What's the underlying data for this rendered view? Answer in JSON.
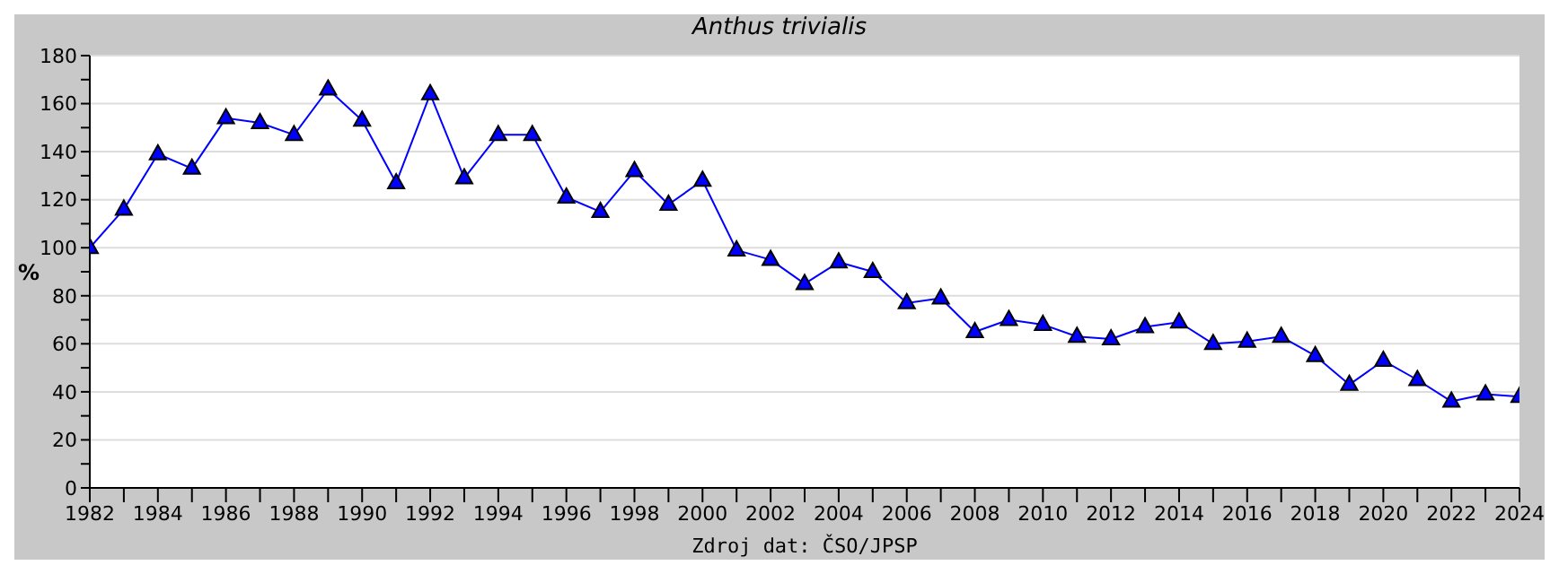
{
  "chart_data": {
    "type": "line",
    "title": "Anthus trivialis",
    "xlabel": "Zdroj dat: ČSO/JPSP",
    "ylabel": "%",
    "x": [
      1982,
      1983,
      1984,
      1985,
      1986,
      1987,
      1988,
      1989,
      1990,
      1991,
      1992,
      1993,
      1994,
      1995,
      1996,
      1997,
      1998,
      1999,
      2000,
      2001,
      2002,
      2003,
      2004,
      2005,
      2006,
      2007,
      2008,
      2009,
      2010,
      2011,
      2012,
      2013,
      2014,
      2015,
      2016,
      2017,
      2018,
      2019,
      2020,
      2021,
      2022,
      2023,
      2024
    ],
    "series": [
      {
        "color": "#0000ff",
        "values": [
          100,
          116,
          139,
          133,
          154,
          152,
          147,
          166,
          153,
          127,
          164,
          129,
          147,
          147,
          121,
          115,
          132,
          118,
          128,
          99,
          95,
          85,
          94,
          90,
          77,
          79,
          65,
          70,
          68,
          63,
          62,
          67,
          69,
          60,
          61,
          63,
          55,
          43,
          53,
          45,
          36,
          39,
          38
        ]
      }
    ],
    "xlim": [
      1982,
      2024
    ],
    "xticks": [
      1982,
      {
        "value": 1983,
        "label": null
      },
      1984,
      {
        "value": 1985,
        "label": null
      },
      1986,
      {
        "value": 1987,
        "label": null
      },
      1988,
      {
        "value": 1989,
        "label": null
      },
      1990,
      {
        "value": 1991,
        "label": null
      },
      1992,
      {
        "value": 1993,
        "label": null
      },
      1994,
      {
        "value": 1995,
        "label": null
      },
      1996,
      {
        "value": 1997,
        "label": null
      },
      1998,
      {
        "value": 1999,
        "label": null
      },
      2000,
      {
        "value": 2001,
        "label": null
      },
      2002,
      {
        "value": 2003,
        "label": null
      },
      2004,
      {
        "value": 2005,
        "label": null
      },
      2006,
      {
        "value": 2007,
        "label": null
      },
      2008,
      {
        "value": 2009,
        "label": null
      },
      2010,
      {
        "value": 2011,
        "label": null
      },
      2012,
      {
        "value": 2013,
        "label": null
      },
      2014,
      {
        "value": 2015,
        "label": null
      },
      2016,
      {
        "value": 2017,
        "label": null
      },
      2018,
      {
        "value": 2019,
        "label": null
      },
      2020,
      {
        "value": 2021,
        "label": null
      },
      2022,
      {
        "value": 2023,
        "label": null
      },
      2024
    ],
    "ylim": [
      0,
      180
    ],
    "yticks": [
      0,
      {
        "value": 10,
        "label": null
      },
      20,
      {
        "value": 30,
        "label": null
      },
      40,
      {
        "value": 50,
        "label": null
      },
      60,
      {
        "value": 70,
        "label": null
      },
      80,
      {
        "value": 90,
        "label": null
      },
      100,
      {
        "value": 110,
        "label": null
      },
      120,
      {
        "value": 130,
        "label": null
      },
      140,
      {
        "value": 150,
        "label": null
      },
      160,
      {
        "value": 170,
        "label": null
      },
      180
    ],
    "grid": "y",
    "marker": "triangle",
    "line_style": "solid",
    "legend": false
  }
}
